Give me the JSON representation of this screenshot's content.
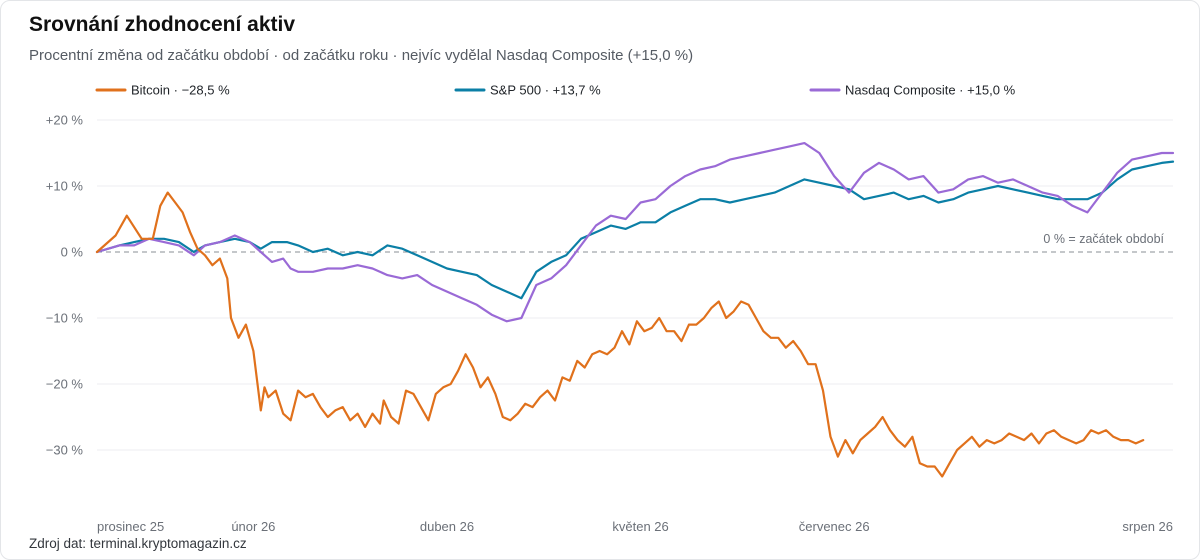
{
  "title": "Srovnání zhodnocení aktiv",
  "subtitle": "Procentní změna od začátku období · od začátku roku · nejvíc vydělal Nasdaq Composite (+15,0 %)",
  "source": "Zdroj dat: terminal.kryptomagazin.cz",
  "chart_data": {
    "type": "line",
    "title": "Srovnání zhodnocení aktiv",
    "subtitle": "Procentní změna od začátku období · od začátku roku · nejvíc vydělal Nasdaq Composite (+15,0 %)",
    "xlabel": "",
    "ylabel": "",
    "ylim": [
      -33,
      20
    ],
    "grid": true,
    "legend": "top",
    "x_tick_labels": [
      "prosinec 25",
      "únor 26",
      "duben 26",
      "květen 26",
      "červenec 26",
      "srpen 26"
    ],
    "x_tick_positions": [
      0,
      42,
      94,
      146,
      198,
      250
    ],
    "y_ticks": [
      20,
      10,
      0,
      -10,
      -20,
      -30
    ],
    "y_tick_labels": [
      "+20 %",
      "+10 %",
      "0 %",
      "−10 %",
      "−20 %",
      "−30 %"
    ],
    "reference_line": {
      "value": 0,
      "label": "0 % = začátek období"
    },
    "legend_labels": [
      "Bitcoin · −28,5 %",
      "S&P 500 · +13,7 %",
      "Nasdaq Composite · +15,0 %"
    ],
    "series": [
      {
        "name": "Bitcoin",
        "color": "#e0711c",
        "final_change": "−28,5 %",
        "points": [
          [
            0,
            0
          ],
          [
            5,
            2.5
          ],
          [
            8,
            5.5
          ],
          [
            12,
            2
          ],
          [
            15,
            2
          ],
          [
            17,
            7
          ],
          [
            19,
            9
          ],
          [
            21,
            7.5
          ],
          [
            23,
            6
          ],
          [
            25,
            3
          ],
          [
            27,
            0.5
          ],
          [
            29,
            -0.5
          ],
          [
            31,
            -2
          ],
          [
            33,
            -1
          ],
          [
            35,
            -4
          ],
          [
            36,
            -10
          ],
          [
            38,
            -13
          ],
          [
            40,
            -11
          ],
          [
            42,
            -15
          ],
          [
            44,
            -24
          ],
          [
            45,
            -20.5
          ],
          [
            46,
            -22
          ],
          [
            48,
            -21
          ],
          [
            50,
            -24.5
          ],
          [
            52,
            -25.5
          ],
          [
            54,
            -21
          ],
          [
            56,
            -22
          ],
          [
            58,
            -21.5
          ],
          [
            60,
            -23.5
          ],
          [
            62,
            -25
          ],
          [
            64,
            -24
          ],
          [
            66,
            -23.5
          ],
          [
            68,
            -25.5
          ],
          [
            70,
            -24.5
          ],
          [
            72,
            -26.5
          ],
          [
            74,
            -24.5
          ],
          [
            76,
            -26
          ],
          [
            77,
            -22.5
          ],
          [
            79,
            -25
          ],
          [
            81,
            -26
          ],
          [
            83,
            -21
          ],
          [
            85,
            -21.5
          ],
          [
            87,
            -23.5
          ],
          [
            89,
            -25.5
          ],
          [
            91,
            -21.5
          ],
          [
            93,
            -20.5
          ],
          [
            95,
            -20
          ],
          [
            97,
            -18
          ],
          [
            99,
            -15.5
          ],
          [
            101,
            -17.5
          ],
          [
            103,
            -20.5
          ],
          [
            105,
            -19
          ],
          [
            107,
            -21.5
          ],
          [
            109,
            -25
          ],
          [
            111,
            -25.5
          ],
          [
            113,
            -24.5
          ],
          [
            115,
            -23
          ],
          [
            117,
            -23.5
          ],
          [
            119,
            -22
          ],
          [
            121,
            -21
          ],
          [
            123,
            -22.5
          ],
          [
            125,
            -19
          ],
          [
            127,
            -19.5
          ],
          [
            129,
            -16.5
          ],
          [
            131,
            -17.5
          ],
          [
            133,
            -15.5
          ],
          [
            135,
            -15
          ],
          [
            137,
            -15.5
          ],
          [
            139,
            -14.5
          ],
          [
            141,
            -12
          ],
          [
            143,
            -14
          ],
          [
            145,
            -10.5
          ],
          [
            147,
            -12
          ],
          [
            149,
            -11.5
          ],
          [
            151,
            -10
          ],
          [
            153,
            -12
          ],
          [
            155,
            -12
          ],
          [
            157,
            -13.5
          ],
          [
            159,
            -11
          ],
          [
            161,
            -11
          ],
          [
            163,
            -10
          ],
          [
            165,
            -8.5
          ],
          [
            167,
            -7.5
          ],
          [
            169,
            -10
          ],
          [
            171,
            -9
          ],
          [
            173,
            -7.5
          ],
          [
            175,
            -8
          ],
          [
            177,
            -10
          ],
          [
            179,
            -12
          ],
          [
            181,
            -13
          ],
          [
            183,
            -13
          ],
          [
            185,
            -14.5
          ],
          [
            187,
            -13.5
          ],
          [
            189,
            -15
          ],
          [
            191,
            -17
          ],
          [
            193,
            -17
          ],
          [
            195,
            -21
          ],
          [
            197,
            -28
          ],
          [
            199,
            -31
          ],
          [
            201,
            -28.5
          ],
          [
            203,
            -30.5
          ],
          [
            205,
            -28.5
          ],
          [
            207,
            -27.5
          ],
          [
            209,
            -26.5
          ],
          [
            211,
            -25
          ],
          [
            213,
            -27
          ],
          [
            215,
            -28.5
          ],
          [
            217,
            -29.5
          ],
          [
            219,
            -28
          ],
          [
            221,
            -32
          ],
          [
            223,
            -32.5
          ],
          [
            225,
            -32.5
          ],
          [
            227,
            -34
          ],
          [
            229,
            -32
          ],
          [
            231,
            -30
          ],
          [
            233,
            -29
          ],
          [
            235,
            -28
          ],
          [
            237,
            -29.5
          ],
          [
            239,
            -28.5
          ],
          [
            241,
            -29
          ],
          [
            243,
            -28.5
          ],
          [
            245,
            -27.5
          ],
          [
            247,
            -28
          ],
          [
            249,
            -28.5
          ],
          [
            251,
            -27.5
          ],
          [
            253,
            -29
          ],
          [
            255,
            -27.5
          ],
          [
            257,
            -27
          ],
          [
            259,
            -28
          ],
          [
            261,
            -28.5
          ],
          [
            263,
            -29
          ],
          [
            265,
            -28.5
          ],
          [
            267,
            -27
          ],
          [
            269,
            -27.5
          ],
          [
            271,
            -27
          ],
          [
            273,
            -28
          ],
          [
            275,
            -28.5
          ],
          [
            277,
            -28.5
          ],
          [
            279,
            -29
          ],
          [
            281,
            -28.5
          ]
        ]
      },
      {
        "name": "S&P 500",
        "color": "#0b7fa6",
        "final_change": "+13,7 %",
        "points": [
          [
            0,
            0
          ],
          [
            6,
            1
          ],
          [
            10,
            1.5
          ],
          [
            14,
            2
          ],
          [
            18,
            2
          ],
          [
            22,
            1.5
          ],
          [
            26,
            0
          ],
          [
            29,
            1
          ],
          [
            33,
            1.5
          ],
          [
            37,
            2
          ],
          [
            41,
            1.5
          ],
          [
            44,
            0.5
          ],
          [
            47,
            1.5
          ],
          [
            51,
            1.5
          ],
          [
            54,
            1
          ],
          [
            58,
            0
          ],
          [
            62,
            0.5
          ],
          [
            66,
            -0.5
          ],
          [
            70,
            0
          ],
          [
            74,
            -0.5
          ],
          [
            78,
            1
          ],
          [
            82,
            0.5
          ],
          [
            86,
            -0.5
          ],
          [
            90,
            -1.5
          ],
          [
            94,
            -2.5
          ],
          [
            98,
            -3
          ],
          [
            102,
            -3.5
          ],
          [
            106,
            -5
          ],
          [
            110,
            -6
          ],
          [
            114,
            -7
          ],
          [
            118,
            -3
          ],
          [
            122,
            -1.5
          ],
          [
            126,
            -0.5
          ],
          [
            130,
            2
          ],
          [
            134,
            3
          ],
          [
            138,
            4
          ],
          [
            142,
            3.5
          ],
          [
            146,
            4.5
          ],
          [
            150,
            4.5
          ],
          [
            154,
            6
          ],
          [
            158,
            7
          ],
          [
            162,
            8
          ],
          [
            166,
            8
          ],
          [
            170,
            7.5
          ],
          [
            174,
            8
          ],
          [
            178,
            8.5
          ],
          [
            182,
            9
          ],
          [
            186,
            10
          ],
          [
            190,
            11
          ],
          [
            194,
            10.5
          ],
          [
            198,
            10
          ],
          [
            202,
            9.5
          ],
          [
            206,
            8
          ],
          [
            210,
            8.5
          ],
          [
            214,
            9
          ],
          [
            218,
            8
          ],
          [
            222,
            8.5
          ],
          [
            226,
            7.5
          ],
          [
            230,
            8
          ],
          [
            234,
            9
          ],
          [
            238,
            9.5
          ],
          [
            242,
            10
          ],
          [
            246,
            9.5
          ],
          [
            250,
            9
          ],
          [
            254,
            8.5
          ],
          [
            258,
            8
          ],
          [
            262,
            8
          ],
          [
            266,
            8
          ],
          [
            270,
            9
          ],
          [
            274,
            11
          ],
          [
            278,
            12.5
          ],
          [
            282,
            13
          ],
          [
            286,
            13.5
          ],
          [
            289,
            13.7
          ]
        ]
      },
      {
        "name": "Nasdaq Composite",
        "color": "#9a6ad6",
        "final_change": "+15,0 %",
        "points": [
          [
            0,
            0
          ],
          [
            6,
            1
          ],
          [
            10,
            1
          ],
          [
            14,
            2
          ],
          [
            18,
            1.5
          ],
          [
            22,
            1
          ],
          [
            26,
            -0.5
          ],
          [
            29,
            1
          ],
          [
            33,
            1.5
          ],
          [
            37,
            2.5
          ],
          [
            41,
            1.5
          ],
          [
            44,
            0
          ],
          [
            47,
            -1.5
          ],
          [
            50,
            -1
          ],
          [
            52,
            -2.5
          ],
          [
            54,
            -3
          ],
          [
            58,
            -3
          ],
          [
            62,
            -2.5
          ],
          [
            66,
            -2.5
          ],
          [
            70,
            -2
          ],
          [
            74,
            -2.5
          ],
          [
            78,
            -3.5
          ],
          [
            82,
            -4
          ],
          [
            86,
            -3.5
          ],
          [
            90,
            -5
          ],
          [
            94,
            -6
          ],
          [
            98,
            -7
          ],
          [
            102,
            -8
          ],
          [
            106,
            -9.5
          ],
          [
            110,
            -10.5
          ],
          [
            114,
            -10
          ],
          [
            118,
            -5
          ],
          [
            122,
            -4
          ],
          [
            126,
            -2
          ],
          [
            130,
            1
          ],
          [
            134,
            4
          ],
          [
            138,
            5.5
          ],
          [
            142,
            5
          ],
          [
            146,
            7.5
          ],
          [
            150,
            8
          ],
          [
            154,
            10
          ],
          [
            158,
            11.5
          ],
          [
            162,
            12.5
          ],
          [
            166,
            13
          ],
          [
            170,
            14
          ],
          [
            174,
            14.5
          ],
          [
            178,
            15
          ],
          [
            182,
            15.5
          ],
          [
            186,
            16
          ],
          [
            190,
            16.5
          ],
          [
            194,
            15
          ],
          [
            198,
            11.5
          ],
          [
            202,
            9
          ],
          [
            206,
            12
          ],
          [
            210,
            13.5
          ],
          [
            214,
            12.5
          ],
          [
            218,
            11
          ],
          [
            222,
            11.5
          ],
          [
            226,
            9
          ],
          [
            230,
            9.5
          ],
          [
            234,
            11
          ],
          [
            238,
            11.5
          ],
          [
            242,
            10.5
          ],
          [
            246,
            11
          ],
          [
            250,
            10
          ],
          [
            254,
            9
          ],
          [
            258,
            8.5
          ],
          [
            262,
            7
          ],
          [
            266,
            6
          ],
          [
            270,
            9
          ],
          [
            274,
            12
          ],
          [
            278,
            14
          ],
          [
            282,
            14.5
          ],
          [
            286,
            15
          ],
          [
            289,
            15
          ]
        ]
      }
    ]
  }
}
